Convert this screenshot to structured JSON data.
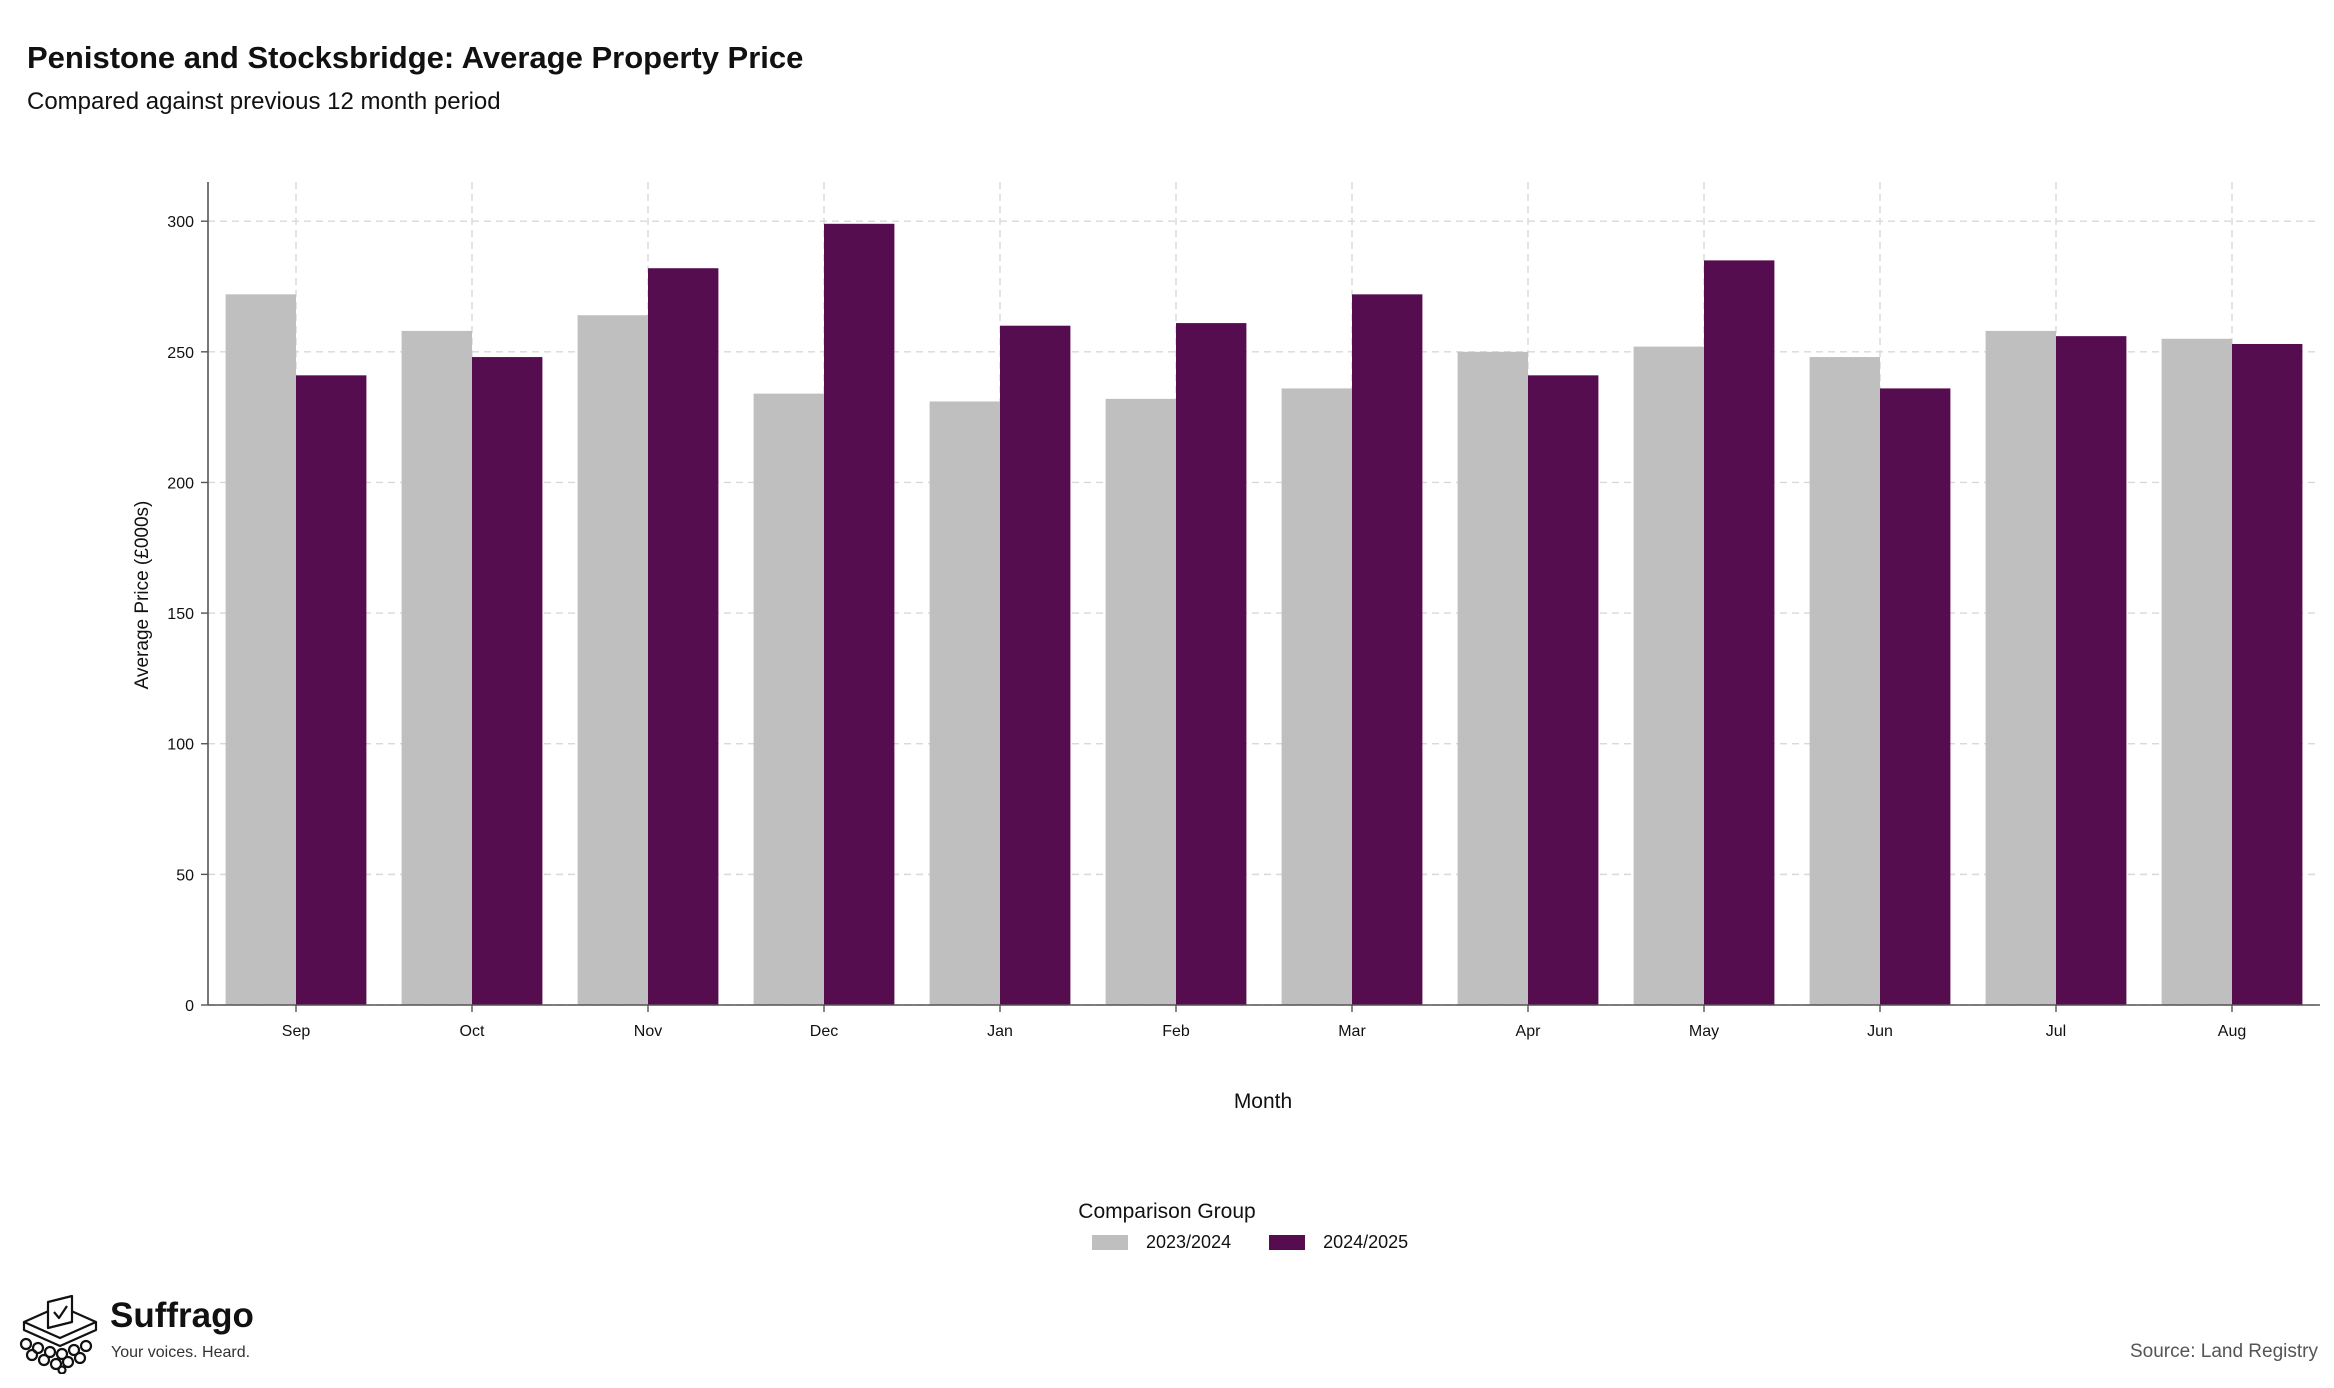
{
  "header": {
    "title": "Penistone and Stocksbridge: Average Property Price",
    "subtitle": "Compared against previous 12 month period"
  },
  "chart_data": {
    "type": "bar",
    "title": "Penistone and Stocksbridge: Average Property Price",
    "subtitle": "Compared against previous 12 month period",
    "xlabel": "Month",
    "ylabel": "Average Price (£000s)",
    "categories": [
      "Sep",
      "Oct",
      "Nov",
      "Dec",
      "Jan",
      "Feb",
      "Mar",
      "Apr",
      "May",
      "Jun",
      "Jul",
      "Aug"
    ],
    "yticks": [
      "0",
      "50",
      "100",
      "150",
      "200",
      "250",
      "300"
    ],
    "ylim": [
      0,
      315
    ],
    "grid": true,
    "legend_title": "Comparison Group",
    "legend_position": "bottom",
    "series": [
      {
        "name": "2023/2024",
        "color": "#bfbfbf",
        "values": [
          272,
          258,
          264,
          234,
          231,
          232,
          236,
          250,
          252,
          248,
          258,
          255
        ]
      },
      {
        "name": "2024/2025",
        "color": "#560d50",
        "values": [
          241,
          248,
          282,
          299,
          260,
          261,
          272,
          241,
          285,
          236,
          256,
          253
        ]
      }
    ]
  },
  "footer": {
    "brand_name": "Suffrago",
    "brand_tagline": "Your voices. Heard.",
    "source": "Source: Land Registry"
  }
}
